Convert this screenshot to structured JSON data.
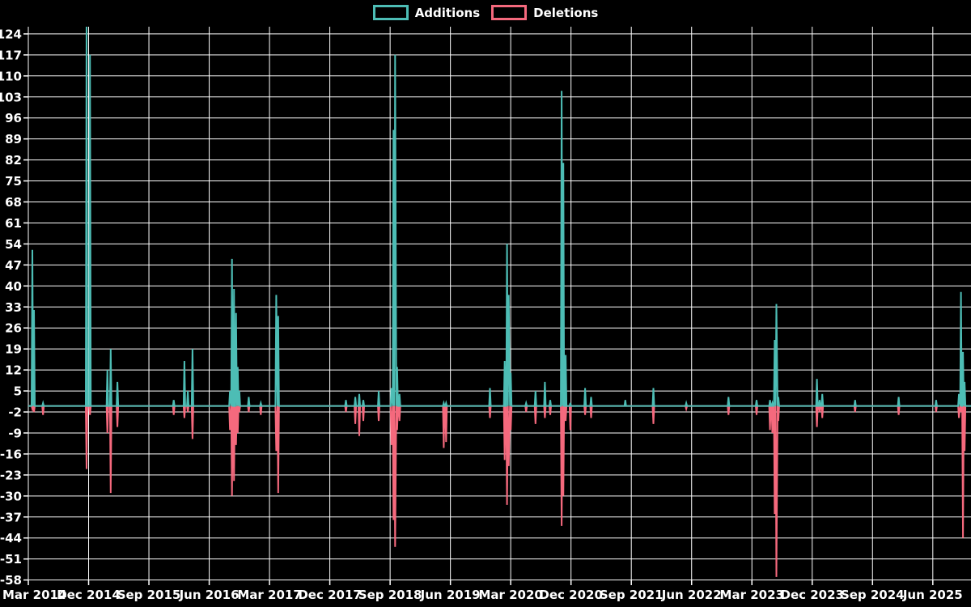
{
  "legend": {
    "items": [
      {
        "label": "Additions",
        "color_key": "additions"
      },
      {
        "label": "Deletions",
        "color_key": "deletions"
      }
    ]
  },
  "colors": {
    "additions": "#4dbdb5",
    "deletions": "#f5697d",
    "background": "#000000",
    "grid": "#ffffff",
    "text": "#ffffff"
  },
  "chart_data": {
    "type": "line",
    "title": "",
    "xlabel": "",
    "ylabel": "",
    "legend_position": "top-center",
    "grid": true,
    "x_tick_labels": [
      "Mar 2014",
      "Dec 2014",
      "Sep 2015",
      "Jun 2016",
      "Mar 2017",
      "Dec 2017",
      "Sep 2018",
      "Jun 2019",
      "Mar 2020",
      "Dec 2020",
      "Sep 2021",
      "Jun 2022",
      "Mar 2023",
      "Dec 2023",
      "Sep 2024",
      "Jun 2025"
    ],
    "x_tick_interval_months": 9,
    "y_ticks": [
      124,
      117,
      110,
      103,
      96,
      89,
      82,
      75,
      68,
      61,
      54,
      47,
      40,
      33,
      26,
      19,
      12,
      5,
      -2,
      -9,
      -16,
      -23,
      -30,
      -37,
      -44,
      -51,
      -58
    ],
    "ylim": [
      -58.1,
      126.4
    ],
    "xlim_months": [
      0,
      140.7
    ],
    "baseline": 0,
    "week_half_months": 0.12,
    "connect_gap_months": 0.3,
    "series": [
      {
        "name": "Additions",
        "color_key": "additions",
        "value_index": 1
      },
      {
        "name": "Deletions",
        "color_key": "deletions",
        "value_index": 2
      }
    ],
    "points_format": [
      "months_since_mar_2014",
      "additions",
      "deletions"
    ],
    "points": [
      [
        0.6,
        52,
        -1
      ],
      [
        0.85,
        32,
        -2
      ],
      [
        2.2,
        1,
        -3
      ],
      [
        8.7,
        131,
        -21
      ],
      [
        9.2,
        117,
        -3
      ],
      [
        11.8,
        12,
        -9
      ],
      [
        12.3,
        19,
        -29
      ],
      [
        13.3,
        8,
        -7
      ],
      [
        21.7,
        2,
        -3
      ],
      [
        23.3,
        15,
        -4
      ],
      [
        23.8,
        5,
        -2
      ],
      [
        24.5,
        19,
        -11
      ],
      [
        30.1,
        5,
        -8
      ],
      [
        30.4,
        49,
        -30
      ],
      [
        30.7,
        39,
        -25
      ],
      [
        31.0,
        31,
        -13
      ],
      [
        31.25,
        13,
        -9
      ],
      [
        31.5,
        5,
        -2
      ],
      [
        32.9,
        3,
        -2
      ],
      [
        34.7,
        1,
        -3
      ],
      [
        37.0,
        37,
        -15
      ],
      [
        37.3,
        30,
        -29
      ],
      [
        47.4,
        2,
        -2
      ],
      [
        48.8,
        3,
        -6
      ],
      [
        49.4,
        4,
        -10
      ],
      [
        50.0,
        2,
        -5
      ],
      [
        52.3,
        5,
        -5
      ],
      [
        54.2,
        6,
        -13
      ],
      [
        54.5,
        92,
        -38
      ],
      [
        54.75,
        117,
        -47
      ],
      [
        55.05,
        13,
        -8
      ],
      [
        55.4,
        4,
        -5
      ],
      [
        62.0,
        1,
        -14
      ],
      [
        62.35,
        1,
        -12
      ],
      [
        68.9,
        6,
        -4
      ],
      [
        71.1,
        15,
        -18
      ],
      [
        71.45,
        54,
        -33
      ],
      [
        71.7,
        37,
        -20
      ],
      [
        72.0,
        11,
        -8
      ],
      [
        74.3,
        1,
        -2
      ],
      [
        75.7,
        5,
        -6
      ],
      [
        77.1,
        8,
        -4
      ],
      [
        77.9,
        2,
        -3
      ],
      [
        79.6,
        105,
        -40
      ],
      [
        79.85,
        81,
        -30
      ],
      [
        80.2,
        17,
        -5
      ],
      [
        80.9,
        1,
        -8
      ],
      [
        83.1,
        6,
        -3
      ],
      [
        84.0,
        3,
        -4
      ],
      [
        89.1,
        2,
        0
      ],
      [
        93.3,
        6,
        -6
      ],
      [
        98.2,
        1,
        -1
      ],
      [
        104.5,
        3,
        -3
      ],
      [
        108.7,
        2,
        -3
      ],
      [
        110.7,
        2,
        -8
      ],
      [
        111.05,
        1,
        -9
      ],
      [
        111.4,
        22,
        -36
      ],
      [
        111.65,
        34,
        -57
      ],
      [
        111.95,
        3,
        -5
      ],
      [
        117.7,
        9,
        -7
      ],
      [
        118.1,
        2,
        -2
      ],
      [
        118.5,
        4,
        -4
      ],
      [
        123.4,
        2,
        -2
      ],
      [
        129.9,
        3,
        -3
      ],
      [
        135.5,
        2,
        -2
      ],
      [
        138.9,
        4,
        -4
      ],
      [
        139.2,
        38,
        -2
      ],
      [
        139.5,
        18,
        -44
      ],
      [
        139.75,
        8,
        -15
      ]
    ]
  }
}
